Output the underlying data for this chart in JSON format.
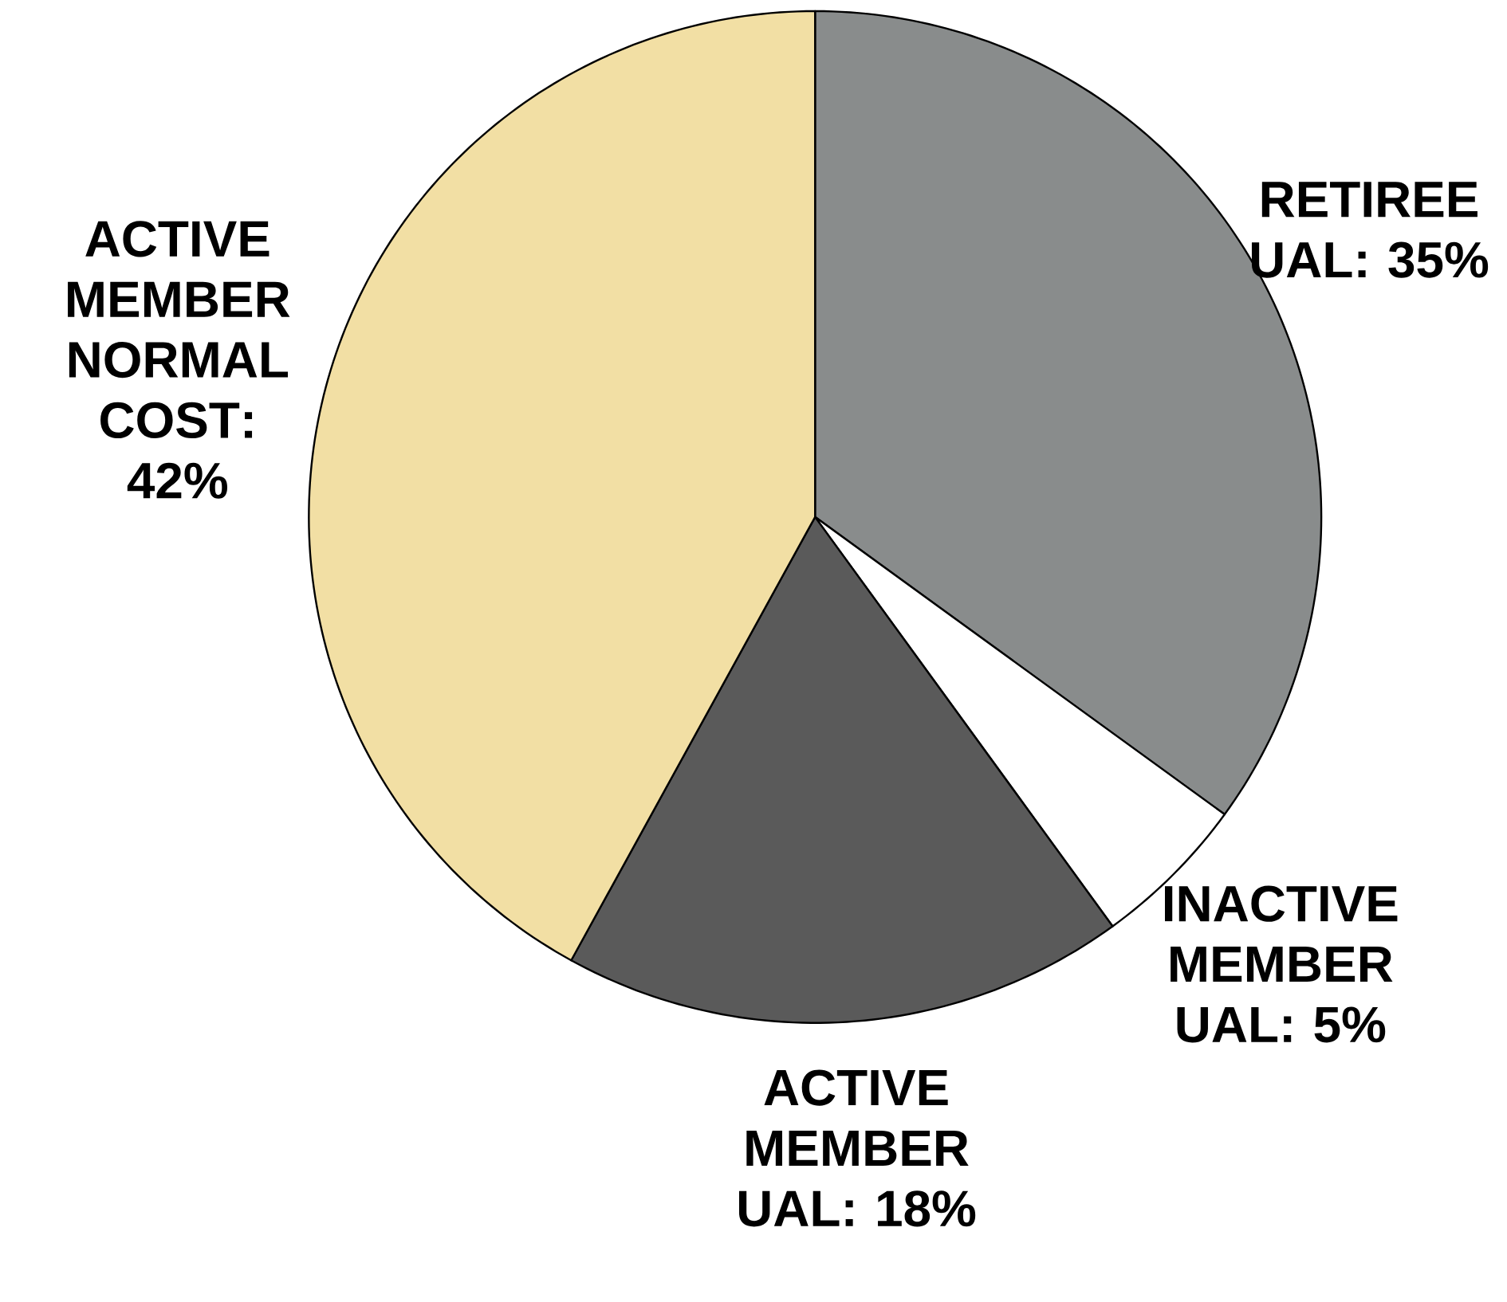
{
  "chart_data": {
    "type": "pie",
    "categories": [
      "RETIREE UAL",
      "INACTIVE MEMBER UAL",
      "ACTIVE MEMBER UAL",
      "ACTIVE MEMBER NORMAL COST"
    ],
    "values": [
      35,
      5,
      18,
      42
    ],
    "value_labels": [
      ": 35%",
      ": 5%",
      ": 18%",
      ": 42%"
    ],
    "colors": [
      "#898c8c",
      "#ffffff",
      "#5a5a5a",
      "#f2dfa4"
    ]
  }
}
